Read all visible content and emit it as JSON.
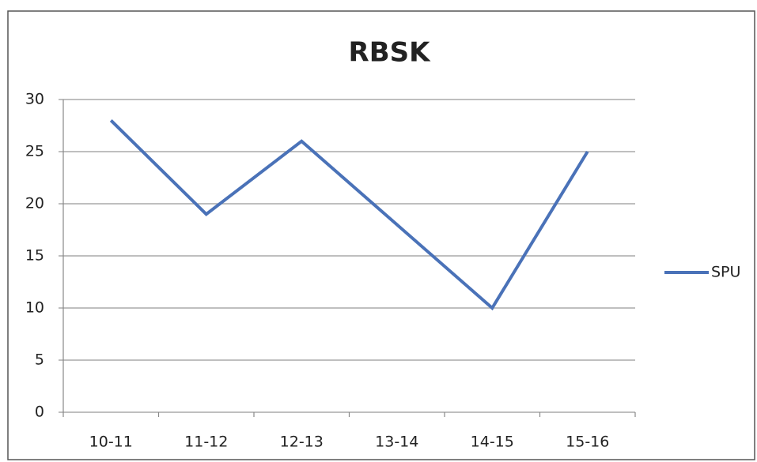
{
  "chart_data": {
    "type": "line",
    "title": "RBSK",
    "categories": [
      "10-11",
      "11-12",
      "12-13",
      "13-14",
      "14-15",
      "15-16"
    ],
    "series": [
      {
        "name": "SPU",
        "color": "#4a72b8",
        "values": [
          28,
          19,
          26,
          18,
          10,
          25
        ]
      }
    ],
    "ylim": [
      0,
      30
    ],
    "yticks": [
      0,
      5,
      10,
      15,
      20,
      25,
      30
    ],
    "grid": true,
    "legend": "right"
  }
}
